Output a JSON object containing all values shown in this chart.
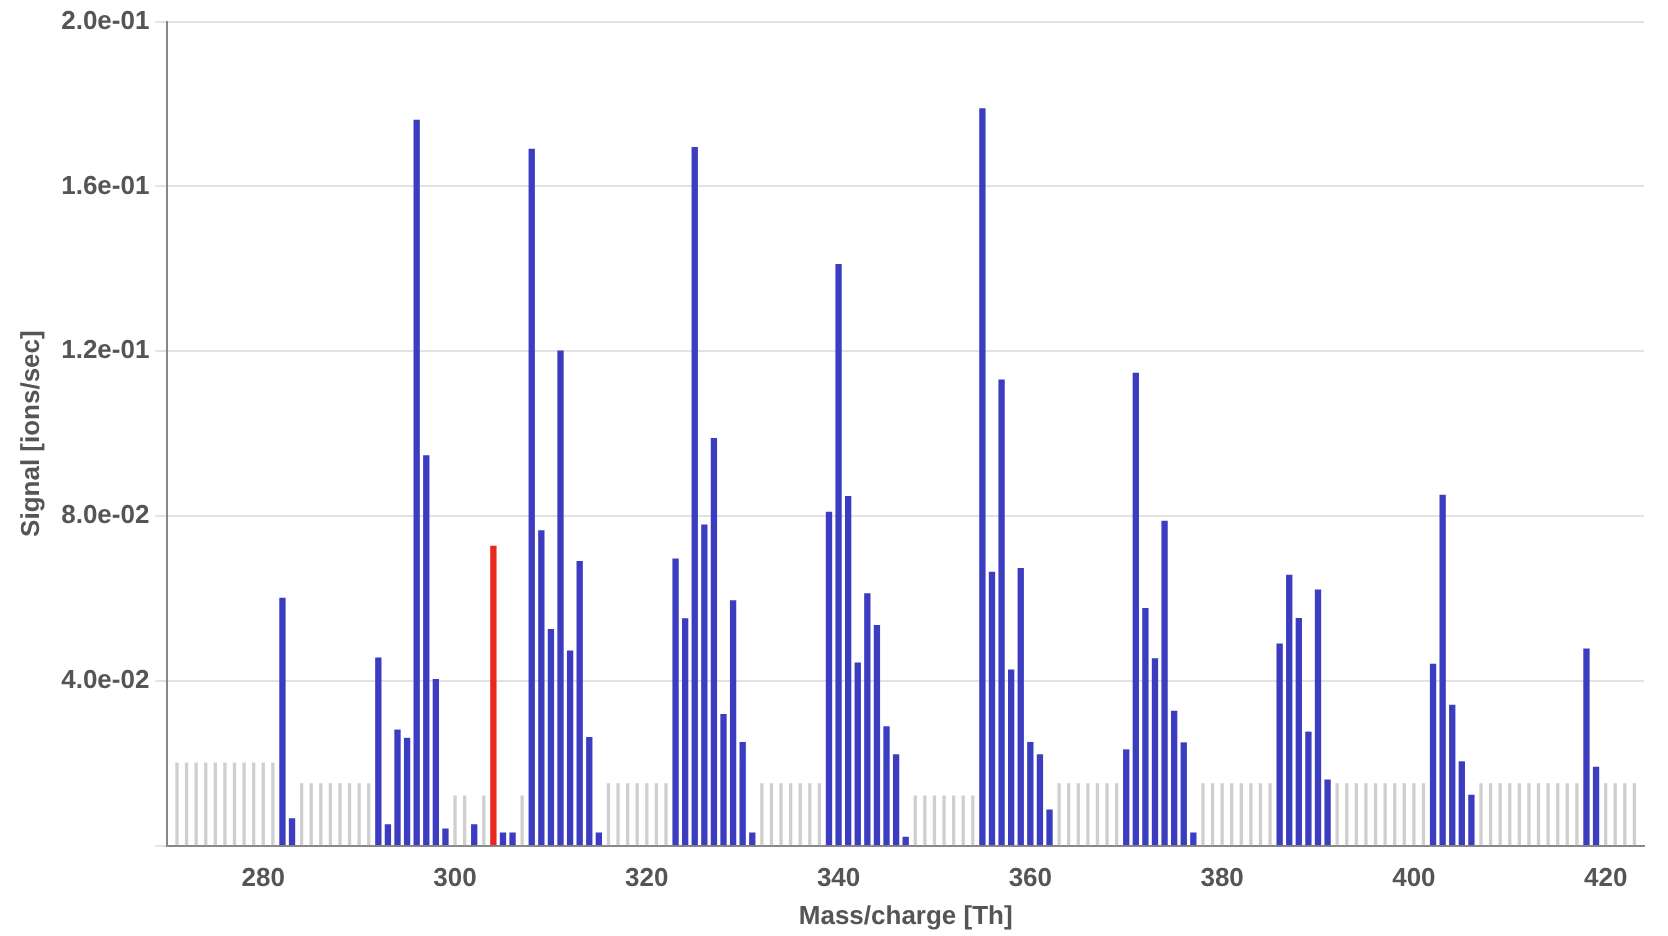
{
  "chart_data": {
    "type": "bar",
    "xlabel": "Mass/charge [Th]",
    "ylabel": "Signal [ions/sec]",
    "xlim": [
      270,
      424
    ],
    "xticks": [
      280,
      300,
      320,
      340,
      360,
      380,
      400,
      420
    ],
    "ylim": [
      0,
      0.2
    ],
    "yticks": [
      {
        "value": 0,
        "label": null
      },
      {
        "value": 0.04,
        "label": "4.0e-02"
      },
      {
        "value": 0.08,
        "label": "8.0e-02"
      },
      {
        "value": 0.12,
        "label": "1.2e-01"
      },
      {
        "value": 0.16,
        "label": "1.6e-01"
      },
      {
        "value": 0.2,
        "label": "2.0e-01"
      }
    ],
    "grid": "y",
    "legend": false,
    "series": [
      {
        "color": "#cfcfcf",
        "x": [
          271,
          272,
          273,
          274,
          275,
          276,
          277,
          278,
          279,
          280,
          281,
          284,
          285,
          286,
          287,
          288,
          289,
          290,
          291,
          300,
          301,
          303,
          307,
          316,
          317,
          318,
          319,
          320,
          321,
          322,
          332,
          333,
          334,
          335,
          336,
          337,
          338,
          348,
          349,
          350,
          351,
          352,
          353,
          354,
          363,
          364,
          365,
          366,
          367,
          368,
          369,
          378,
          379,
          380,
          381,
          382,
          383,
          384,
          385,
          392,
          393,
          394,
          395,
          396,
          397,
          398,
          399,
          400,
          401,
          407,
          408,
          409,
          410,
          411,
          412,
          413,
          414,
          415,
          416,
          417,
          420,
          421,
          422,
          423
        ],
        "values": [
          0.02,
          0.02,
          0.02,
          0.02,
          0.02,
          0.02,
          0.02,
          0.02,
          0.02,
          0.02,
          0.02,
          0.015,
          0.015,
          0.015,
          0.015,
          0.015,
          0.015,
          0.015,
          0.015,
          0.012,
          0.012,
          0.012,
          0.012,
          0.015,
          0.015,
          0.015,
          0.015,
          0.015,
          0.015,
          0.015,
          0.015,
          0.015,
          0.015,
          0.015,
          0.015,
          0.015,
          0.015,
          0.012,
          0.012,
          0.012,
          0.012,
          0.012,
          0.012,
          0.012,
          0.015,
          0.015,
          0.015,
          0.015,
          0.015,
          0.015,
          0.015,
          0.015,
          0.015,
          0.015,
          0.015,
          0.015,
          0.015,
          0.015,
          0.015,
          0.015,
          0.015,
          0.015,
          0.015,
          0.015,
          0.015,
          0.015,
          0.015,
          0.015,
          0.015,
          0.015,
          0.015,
          0.015,
          0.015,
          0.015,
          0.015,
          0.015,
          0.015,
          0.015,
          0.015,
          0.015,
          0.015,
          0.015,
          0.015,
          0.015
        ]
      },
      {
        "color": "#3c3cc0",
        "x": [
          282,
          283,
          292,
          293,
          294,
          295,
          296,
          297,
          298,
          299,
          302,
          305,
          306,
          308,
          309,
          310,
          311,
          312,
          313,
          314,
          315,
          323,
          324,
          325,
          326,
          327,
          328,
          329,
          330,
          331,
          339,
          340,
          341,
          342,
          343,
          344,
          345,
          346,
          347,
          355,
          356,
          357,
          358,
          359,
          360,
          361,
          362,
          370,
          371,
          372,
          373,
          374,
          375,
          376,
          377,
          386,
          387,
          388,
          389,
          390,
          391,
          402,
          403,
          404,
          405,
          406,
          418,
          419
        ],
        "values": [
          0.06,
          0.0065,
          0.0455,
          0.005,
          0.028,
          0.026,
          0.176,
          0.0946,
          0.0403,
          0.004,
          0.005,
          0.003,
          0.003,
          0.169,
          0.0764,
          0.0524,
          0.12,
          0.0472,
          0.0689,
          0.0262,
          0.003,
          0.0695,
          0.055,
          0.1694,
          0.0778,
          0.0988,
          0.0318,
          0.0594,
          0.025,
          0.003,
          0.0809,
          0.141,
          0.0847,
          0.0443,
          0.0611,
          0.0534,
          0.0288,
          0.022,
          0.002,
          0.1788,
          0.0663,
          0.113,
          0.0426,
          0.0672,
          0.025,
          0.022,
          0.0086,
          0.0232,
          0.1146,
          0.0575,
          0.0453,
          0.0787,
          0.0326,
          0.0249,
          0.003,
          0.0489,
          0.0656,
          0.0551,
          0.0275,
          0.062,
          0.0159,
          0.044,
          0.085,
          0.034,
          0.0203,
          0.0122,
          0.0477,
          0.019
        ]
      },
      {
        "color": "#e8281e",
        "x": [
          304
        ],
        "values": [
          0.0726
        ]
      }
    ]
  }
}
